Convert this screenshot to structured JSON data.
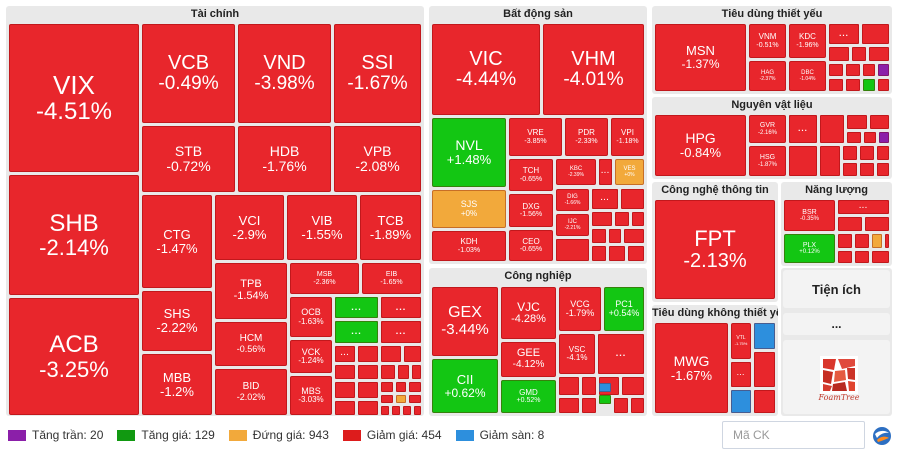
{
  "colors": {
    "down": "#e8262c",
    "up": "#13c613",
    "flat": "#f2a93b",
    "ceiling": "#8b1fa9",
    "floor": "#2d8fdd",
    "panel_bg": "#e9e9e9"
  },
  "legend": [
    {
      "label": "Tăng trần: 20",
      "color": "#8b1fa9"
    },
    {
      "label": "Tăng giá: 129",
      "color": "#119911"
    },
    {
      "label": "Đứng giá: 943",
      "color": "#f2a93b"
    },
    {
      "label": "Giảm giá: 454",
      "color": "#dd1c1c"
    },
    {
      "label": "Giảm sàn: 8",
      "color": "#2d8fdd"
    }
  ],
  "search": {
    "placeholder": "Mã CK"
  },
  "foamtree": {
    "text": "FoamTree"
  },
  "more_label": "...",
  "chart_data": {
    "type": "treemap",
    "sectors": [
      {
        "name": "Tài chính",
        "stocks": [
          {
            "symbol": "VIX",
            "change": "-4.51%"
          },
          {
            "symbol": "VCB",
            "change": "-0.49%"
          },
          {
            "symbol": "VND",
            "change": "-3.98%"
          },
          {
            "symbol": "SSI",
            "change": "-1.67%"
          },
          {
            "symbol": "STB",
            "change": "-0.72%"
          },
          {
            "symbol": "HDB",
            "change": "-1.76%"
          },
          {
            "symbol": "VPB",
            "change": "-2.08%"
          },
          {
            "symbol": "SHB",
            "change": "-2.14%"
          },
          {
            "symbol": "CTG",
            "change": "-1.47%"
          },
          {
            "symbol": "VCI",
            "change": "-2.9%"
          },
          {
            "symbol": "VIB",
            "change": "-1.55%"
          },
          {
            "symbol": "TCB",
            "change": "-1.89%"
          },
          {
            "symbol": "TPB",
            "change": "-1.54%"
          },
          {
            "symbol": "MSB",
            "change": "-2.36%"
          },
          {
            "symbol": "EIB",
            "change": "-1.65%"
          },
          {
            "symbol": "SHS",
            "change": "-2.22%"
          },
          {
            "symbol": "OCB",
            "change": "-1.63%"
          },
          {
            "symbol": "HCM",
            "change": "-0.56%"
          },
          {
            "symbol": "ACB",
            "change": "-3.25%"
          },
          {
            "symbol": "VCK",
            "change": "-1.24%"
          },
          {
            "symbol": "MBB",
            "change": "-1.2%"
          },
          {
            "symbol": "BID",
            "change": "-2.02%"
          },
          {
            "symbol": "MBS",
            "change": "-3.03%"
          }
        ]
      },
      {
        "name": "Bất động sản",
        "stocks": [
          {
            "symbol": "VIC",
            "change": "-4.44%"
          },
          {
            "symbol": "VHM",
            "change": "-4.01%"
          },
          {
            "symbol": "NVL",
            "change": "+1.48%"
          },
          {
            "symbol": "VRE",
            "change": "-3.85%"
          },
          {
            "symbol": "PDR",
            "change": "-2.33%"
          },
          {
            "symbol": "VPI",
            "change": "-1.18%"
          },
          {
            "symbol": "TCH",
            "change": "-0.65%"
          },
          {
            "symbol": "KBC",
            "change": "-2.39%"
          },
          {
            "symbol": "VES",
            "change": "+0%"
          },
          {
            "symbol": "SJS",
            "change": "+0%"
          },
          {
            "symbol": "DXG",
            "change": "-1.56%"
          },
          {
            "symbol": "DIG",
            "change": "-1.66%"
          },
          {
            "symbol": "IJC",
            "change": "-2.21%"
          },
          {
            "symbol": "KDH",
            "change": "-1.03%"
          },
          {
            "symbol": "CEO",
            "change": "-0.65%"
          }
        ]
      },
      {
        "name": "Công nghiệp",
        "stocks": [
          {
            "symbol": "GEX",
            "change": "-3.44%"
          },
          {
            "symbol": "VJC",
            "change": "-4.28%"
          },
          {
            "symbol": "VCG",
            "change": "-1.79%"
          },
          {
            "symbol": "PC1",
            "change": "+0.54%"
          },
          {
            "symbol": "GEE",
            "change": "-4.12%"
          },
          {
            "symbol": "VSC",
            "change": "-4.1%"
          },
          {
            "symbol": "CII",
            "change": "+0.62%"
          },
          {
            "symbol": "GMD",
            "change": "+0.52%"
          }
        ]
      },
      {
        "name": "Tiêu dùng thiết yếu",
        "stocks": [
          {
            "symbol": "MSN",
            "change": "-1.37%"
          },
          {
            "symbol": "VNM",
            "change": "-0.51%"
          },
          {
            "symbol": "KDC",
            "change": "-1.96%"
          },
          {
            "symbol": "HAG",
            "change": "-2.37%"
          },
          {
            "symbol": "DBC",
            "change": "-1.04%"
          }
        ]
      },
      {
        "name": "Nguyên vật liệu",
        "stocks": [
          {
            "symbol": "HPG",
            "change": "-0.84%"
          },
          {
            "symbol": "GVR",
            "change": "-2.16%"
          },
          {
            "symbol": "HSG",
            "change": "-1.87%"
          }
        ]
      },
      {
        "name": "Công nghệ thông tin",
        "stocks": [
          {
            "symbol": "FPT",
            "change": "-2.13%"
          }
        ]
      },
      {
        "name": "Năng lượng",
        "stocks": [
          {
            "symbol": "BSR",
            "change": "-0.35%"
          },
          {
            "symbol": "PLX",
            "change": "+0.12%"
          }
        ]
      },
      {
        "name": "Tiêu dùng không thiết yếu",
        "stocks": [
          {
            "symbol": "MWG",
            "change": "-1.67%"
          },
          {
            "symbol": "VTL",
            "change": "-1.75%"
          }
        ]
      },
      {
        "name": "Tiện ích",
        "stocks": []
      }
    ]
  }
}
